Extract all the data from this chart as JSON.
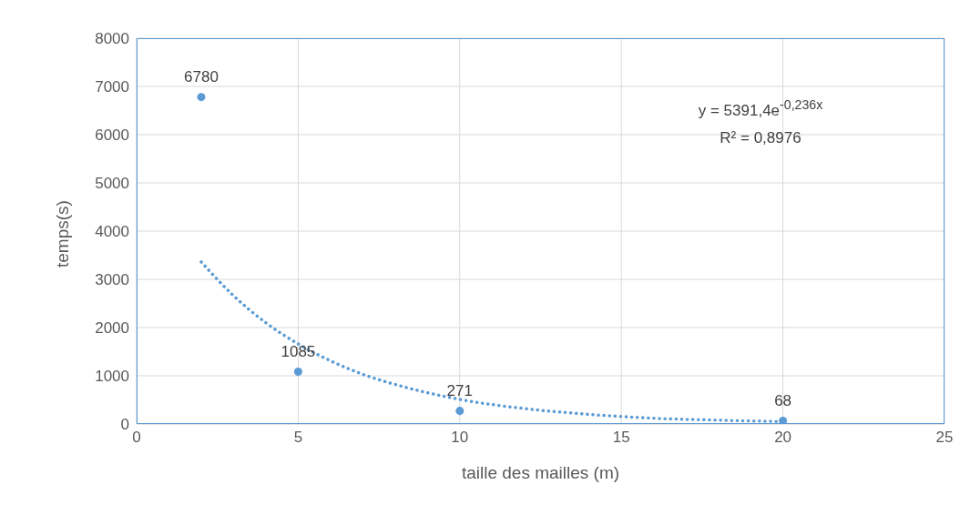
{
  "chart_data": {
    "type": "scatter",
    "xlabel": "taille des mailles (m)",
    "ylabel": "temps(s)",
    "xlim": [
      0,
      25
    ],
    "xticks": [
      0,
      5,
      10,
      15,
      20,
      25
    ],
    "ylim": [
      0,
      8000
    ],
    "yticks": [
      0,
      1000,
      2000,
      3000,
      4000,
      5000,
      6000,
      7000,
      8000
    ],
    "grid": true,
    "legend": false,
    "marker": "circle",
    "annotations": [
      "y = 5391,4e$^{-0,236x}$",
      "R² = 0,8976"
    ],
    "series": [
      {
        "color": "#5b9bd5",
        "x": [
          2,
          5,
          10,
          20
        ],
        "values": [
          6780,
          1085,
          271,
          68
        ],
        "data_labels": true
      },
      {
        "type": "line",
        "color": "#5b9bd5",
        "line_style": "dotted",
        "marker": "none",
        "x": [
          2,
          3,
          4,
          5,
          6,
          7,
          8,
          10,
          12,
          14,
          16,
          18,
          20
        ],
        "values": [
          3360,
          2660,
          2100,
          1660,
          1310,
          1030,
          820,
          510,
          320,
          200,
          120,
          80,
          50
        ]
      }
    ]
  }
}
